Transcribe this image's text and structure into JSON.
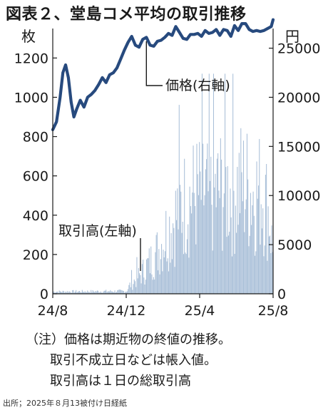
{
  "title": "図表２、堂島コメ平均の取引推移",
  "chart_data": {
    "type": "bar+line",
    "left_unit": "枚",
    "right_unit": "円",
    "left_ylim": [
      0,
      1350
    ],
    "right_ylim": [
      0,
      27000
    ],
    "left_ticks": [
      "0",
      "200",
      "400",
      "600",
      "800",
      "1000",
      "1200"
    ],
    "left_tick_values": [
      0,
      200,
      400,
      600,
      800,
      1000,
      1200
    ],
    "right_ticks": [
      "0",
      "5000",
      "10000",
      "15000",
      "20000",
      "25000"
    ],
    "right_tick_values": [
      0,
      5000,
      10000,
      15000,
      20000,
      25000
    ],
    "x_ticks": [
      "24/8",
      "24/12",
      "25/4",
      "25/8"
    ],
    "x_tick_positions": [
      0,
      4,
      8,
      12
    ],
    "series": [
      {
        "name": "価格(右軸)",
        "type": "line",
        "axis": "right",
        "x": [
          0,
          0.2,
          0.4,
          0.55,
          0.7,
          0.85,
          1.0,
          1.15,
          1.3,
          1.5,
          1.7,
          1.9,
          2.1,
          2.3,
          2.5,
          2.7,
          2.9,
          3.1,
          3.3,
          3.5,
          3.7,
          3.9,
          4.1,
          4.3,
          4.5,
          4.7,
          4.9,
          5.1,
          5.3,
          5.5,
          5.7,
          5.9,
          6.1,
          6.3,
          6.5,
          6.7,
          6.9,
          7.1,
          7.3,
          7.5,
          7.7,
          7.9,
          8.1,
          8.3,
          8.5,
          8.7,
          8.9,
          9.1,
          9.3,
          9.5,
          9.7,
          9.9,
          10.1,
          10.3,
          10.5,
          10.7,
          10.9,
          11.1,
          11.3,
          11.5,
          11.7,
          11.9,
          12.0
        ],
        "values": [
          16700,
          17500,
          20000,
          22500,
          23300,
          22000,
          19500,
          18000,
          18800,
          19700,
          19000,
          20000,
          20300,
          20700,
          21300,
          22000,
          21500,
          22300,
          22500,
          23000,
          23900,
          24800,
          25600,
          26200,
          25300,
          25100,
          25900,
          26100,
          25300,
          25200,
          25700,
          25800,
          26100,
          26500,
          26300,
          27200,
          26600,
          26000,
          25900,
          26400,
          26400,
          26500,
          26200,
          26800,
          26500,
          26600,
          26900,
          26300,
          26900,
          26800,
          26200,
          27300,
          26800,
          27500,
          27500,
          26900,
          26700,
          26800,
          26700,
          26800,
          27000,
          27200,
          27900
        ]
      },
      {
        "name": "取引高(左軸)",
        "type": "bar",
        "axis": "left",
        "envelope_x": [
          0,
          4.0,
          4.2,
          4.6,
          5.0,
          5.4,
          5.8,
          6.2,
          6.6,
          7.0,
          7.4,
          7.8,
          8.2,
          8.6,
          9.0,
          9.4,
          9.8,
          10.2,
          10.6,
          11.0,
          11.4,
          11.8,
          12.0
        ],
        "envelope_values": [
          12,
          15,
          60,
          110,
          170,
          240,
          320,
          430,
          520,
          610,
          660,
          690,
          700,
          670,
          720,
          740,
          700,
          760,
          740,
          700,
          720,
          560,
          260
        ]
      }
    ]
  },
  "annotations": {
    "price_label": "価格(右軸)",
    "volume_label": "取引高(左軸)"
  },
  "notes": [
    "（注）価格は期近物の終値の推移。",
    "取引不成立日などは帳入値。",
    "取引高は１日の総取引高"
  ],
  "source": "出所；2025年８月13被付け日経紙",
  "colors": {
    "line": "#274a7e",
    "bar": "#a9bfd8",
    "axis": "#1a1a1a"
  }
}
